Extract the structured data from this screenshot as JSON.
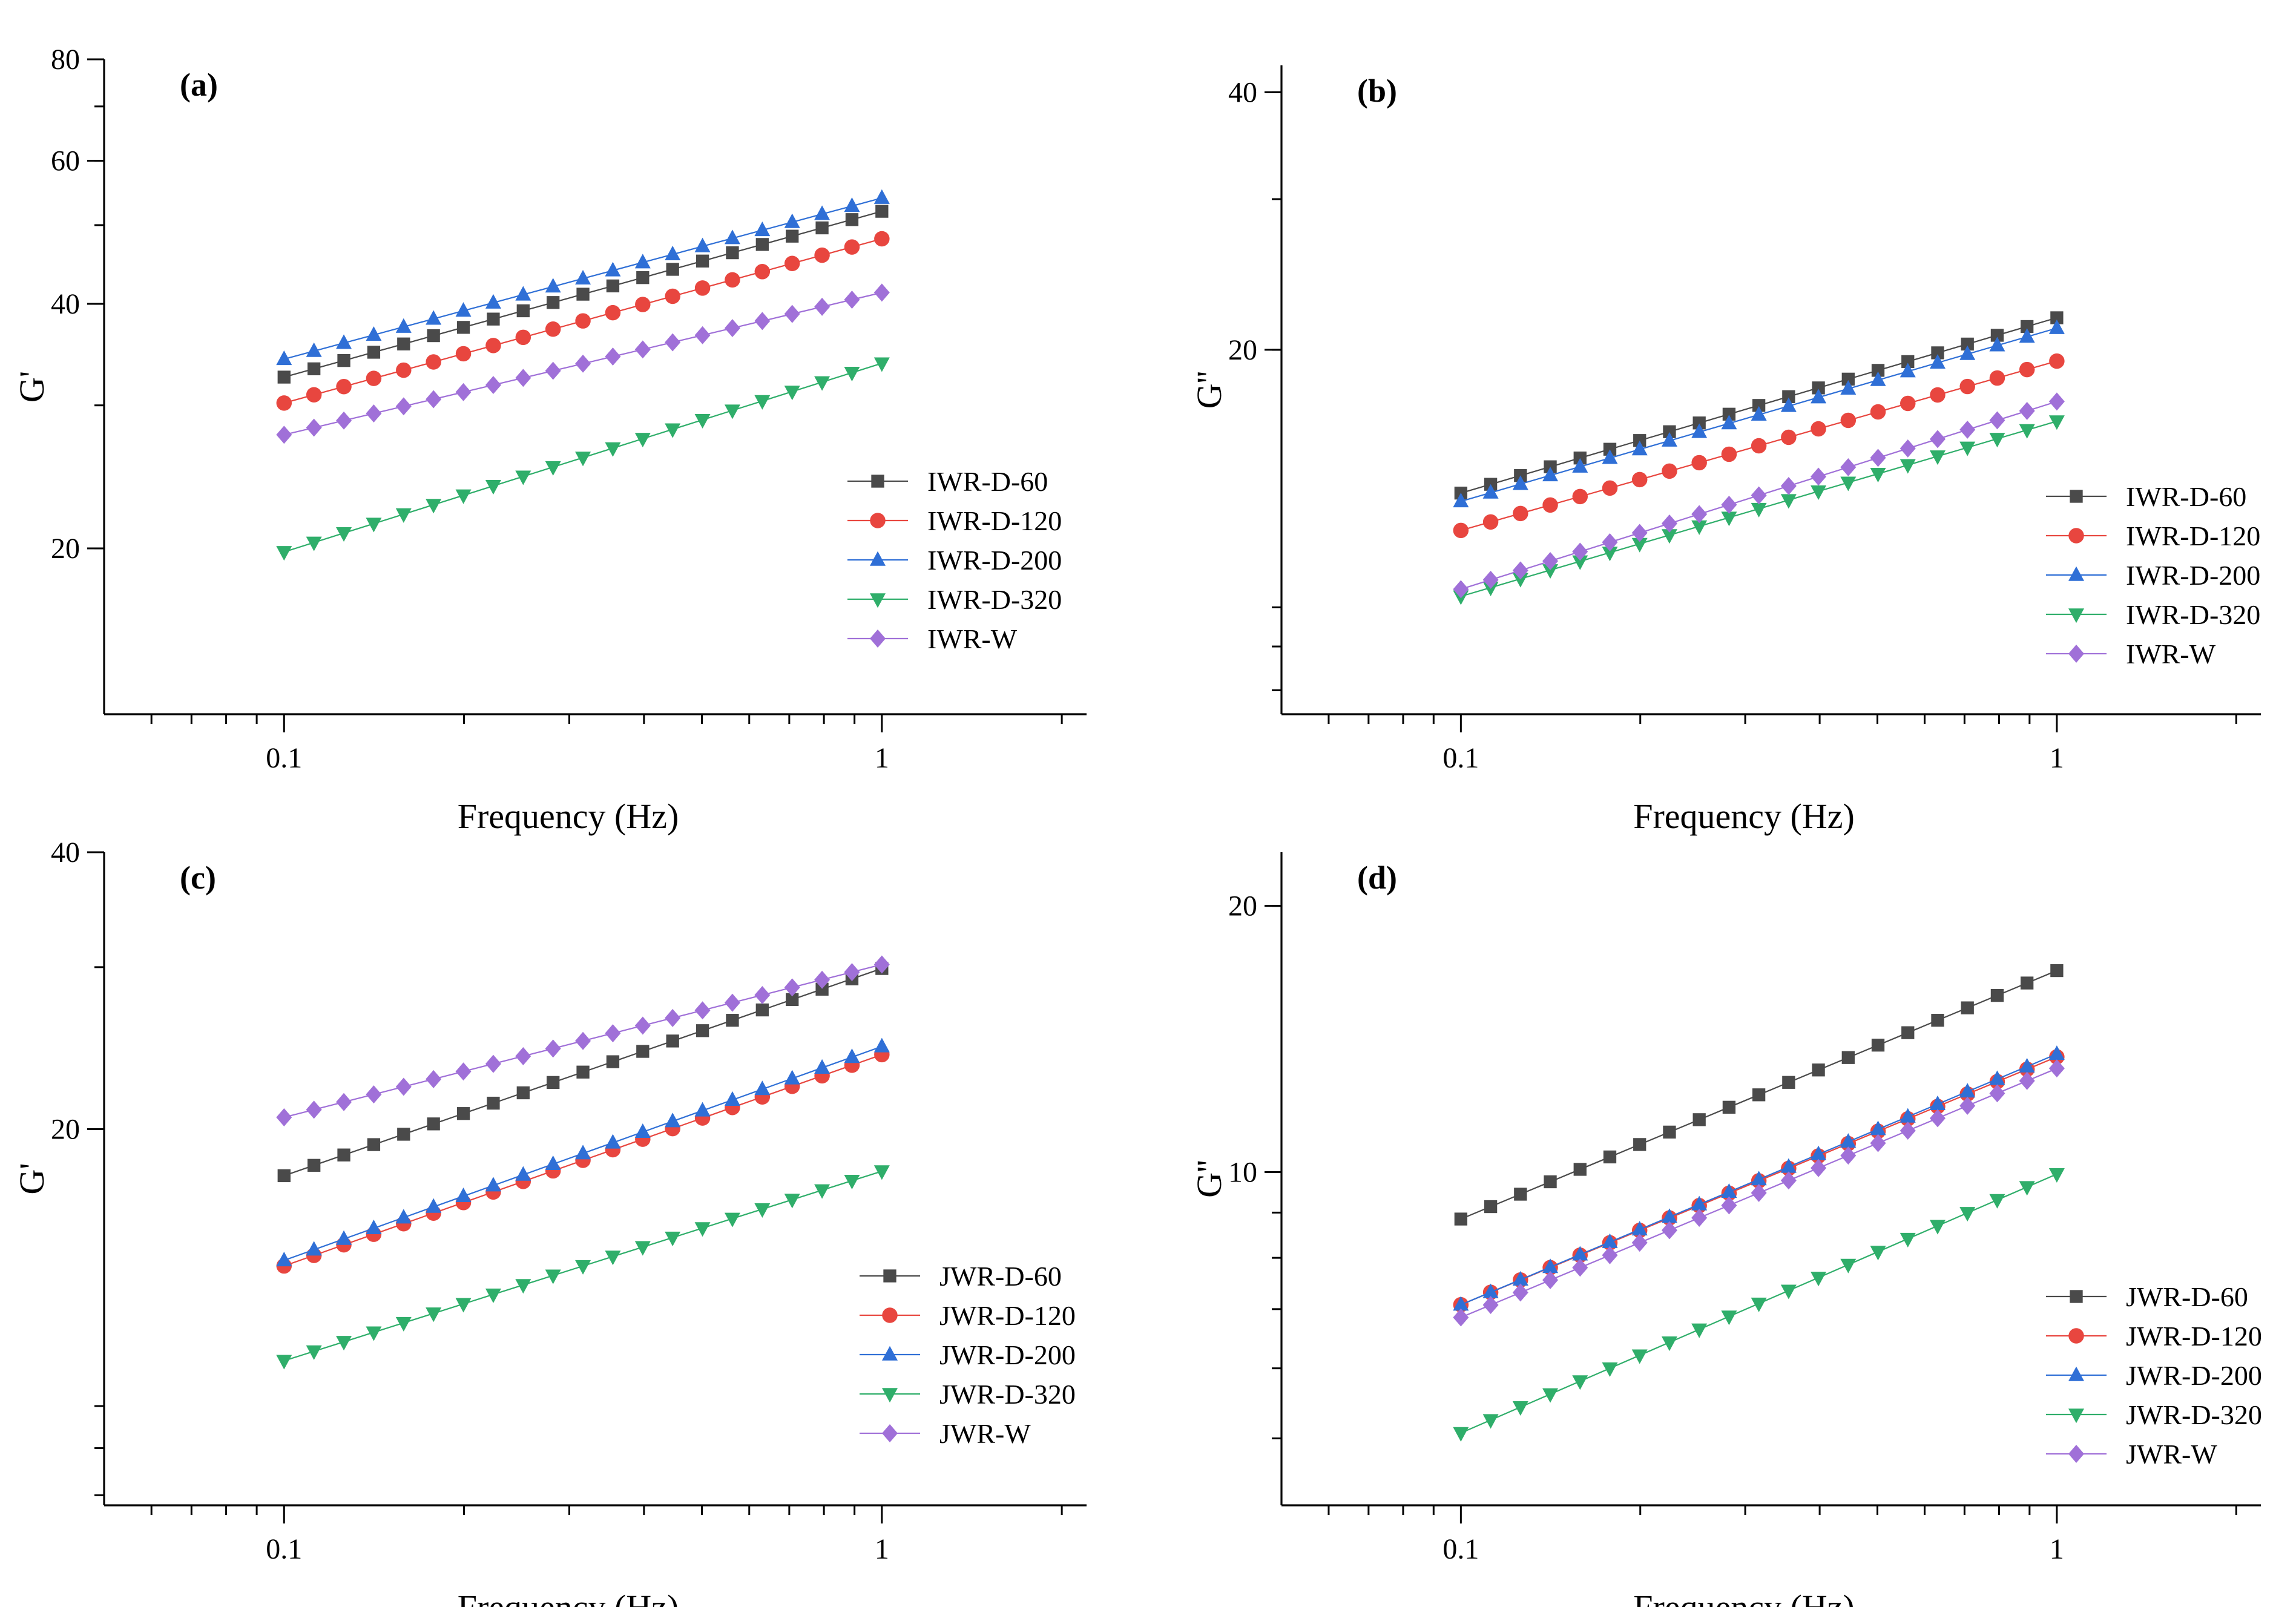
{
  "chart_data": [
    {
      "type": "scatter",
      "panel_label": "(a)",
      "title": "",
      "xlabel": "Frequency (Hz)",
      "ylabel": "G'",
      "xscale": "log",
      "yscale": "log",
      "xlim": [
        0.05,
        2.2
      ],
      "ylim": [
        12.5,
        80
      ],
      "xticks": [
        {
          "value": 0.1,
          "label": "0.1"
        },
        {
          "value": 1,
          "label": "1"
        }
      ],
      "yticks": [
        {
          "value": 20,
          "label": "20"
        },
        {
          "value": 40,
          "label": "40"
        },
        {
          "value": 60,
          "label": "60"
        },
        {
          "value": 80,
          "label": "80"
        }
      ],
      "legend_position": "center-right",
      "n_points": 21,
      "x_range": [
        0.1,
        1
      ],
      "series": [
        {
          "name": "IWR-D-60",
          "color": "#4a4a4a",
          "marker": "square",
          "y_start": 32.5,
          "y_end": 52.0
        },
        {
          "name": "IWR-D-120",
          "color": "#e8463f",
          "marker": "circle",
          "y_start": 30.2,
          "y_end": 48.1
        },
        {
          "name": "IWR-D-200",
          "color": "#2f6fd6",
          "marker": "triangle-up",
          "y_start": 34.2,
          "y_end": 54.0
        },
        {
          "name": "IWR-D-320",
          "color": "#2fae6a",
          "marker": "triangle-down",
          "y_start": 19.8,
          "y_end": 33.8
        },
        {
          "name": "IWR-W",
          "color": "#a070d8",
          "marker": "diamond",
          "y_start": 27.6,
          "y_end": 41.3
        }
      ]
    },
    {
      "type": "scatter",
      "panel_label": "(b)",
      "title": "",
      "xlabel": "Frequency (Hz)",
      "ylabel": "G''",
      "xscale": "log",
      "yscale": "log",
      "xlim": [
        0.05,
        2.2
      ],
      "ylim": [
        7.5,
        43
      ],
      "xticks": [
        {
          "value": 0.1,
          "label": "0.1"
        },
        {
          "value": 1,
          "label": "1"
        }
      ],
      "yticks": [
        {
          "value": 20,
          "label": "20"
        },
        {
          "value": 40,
          "label": "40"
        }
      ],
      "legend_position": "bottom-right",
      "n_points": 21,
      "x_range": [
        0.1,
        1
      ],
      "series": [
        {
          "name": "IWR-D-60",
          "color": "#4a4a4a",
          "marker": "square",
          "y_start": 13.6,
          "y_end": 21.8
        },
        {
          "name": "IWR-D-120",
          "color": "#e8463f",
          "marker": "circle",
          "y_start": 12.3,
          "y_end": 19.4
        },
        {
          "name": "IWR-D-200",
          "color": "#2f6fd6",
          "marker": "triangle-up",
          "y_start": 13.3,
          "y_end": 21.2
        },
        {
          "name": "IWR-D-320",
          "color": "#2fae6a",
          "marker": "triangle-down",
          "y_start": 10.3,
          "y_end": 16.5
        },
        {
          "name": "IWR-W",
          "color": "#a070d8",
          "marker": "diamond",
          "y_start": 10.5,
          "y_end": 17.4
        }
      ]
    },
    {
      "type": "scatter",
      "panel_label": "(c)",
      "title": "",
      "xlabel": "Frequency (Hz)",
      "ylabel": "G'",
      "xscale": "log",
      "yscale": "log",
      "xlim": [
        0.05,
        2.2
      ],
      "ylim": [
        7.8,
        40
      ],
      "xticks": [
        {
          "value": 0.1,
          "label": "0.1"
        },
        {
          "value": 1,
          "label": "1"
        }
      ],
      "yticks": [
        {
          "value": 20,
          "label": "20"
        },
        {
          "value": 40,
          "label": "40"
        }
      ],
      "legend_position": "bottom-right",
      "n_points": 21,
      "x_range": [
        0.1,
        1
      ],
      "series": [
        {
          "name": "JWR-D-60",
          "color": "#4a4a4a",
          "marker": "square",
          "y_start": 17.8,
          "y_end": 29.9
        },
        {
          "name": "JWR-D-120",
          "color": "#e8463f",
          "marker": "circle",
          "y_start": 14.2,
          "y_end": 24.1
        },
        {
          "name": "JWR-D-200",
          "color": "#2f6fd6",
          "marker": "triangle-up",
          "y_start": 14.4,
          "y_end": 24.6
        },
        {
          "name": "JWR-D-320",
          "color": "#2fae6a",
          "marker": "triangle-down",
          "y_start": 11.2,
          "y_end": 18.0
        },
        {
          "name": "JWR-W",
          "color": "#a070d8",
          "marker": "diamond",
          "y_start": 20.6,
          "y_end": 30.2
        }
      ]
    },
    {
      "type": "scatter",
      "panel_label": "(d)",
      "title": "",
      "xlabel": "Frequency (Hz)",
      "ylabel": "G''",
      "xscale": "log",
      "yscale": "log",
      "xlim": [
        0.05,
        2.2
      ],
      "ylim": [
        4.2,
        23
      ],
      "xticks": [
        {
          "value": 0.1,
          "label": "0.1"
        },
        {
          "value": 1,
          "label": "1"
        }
      ],
      "yticks": [
        {
          "value": 10,
          "label": "10"
        },
        {
          "value": 20,
          "label": "20"
        }
      ],
      "legend_position": "bottom-right",
      "n_points": 21,
      "x_range": [
        0.1,
        1
      ],
      "series": [
        {
          "name": "JWR-D-60",
          "color": "#4a4a4a",
          "marker": "square",
          "y_start": 8.85,
          "y_end": 16.9
        },
        {
          "name": "JWR-D-120",
          "color": "#e8463f",
          "marker": "circle",
          "y_start": 7.08,
          "y_end": 13.5
        },
        {
          "name": "JWR-D-200",
          "color": "#2f6fd6",
          "marker": "triangle-up",
          "y_start": 7.08,
          "y_end": 13.6
        },
        {
          "name": "JWR-D-320",
          "color": "#2fae6a",
          "marker": "triangle-down",
          "y_start": 5.07,
          "y_end": 9.95
        },
        {
          "name": "JWR-W",
          "color": "#a070d8",
          "marker": "diamond",
          "y_start": 6.85,
          "y_end": 13.1
        }
      ]
    }
  ]
}
